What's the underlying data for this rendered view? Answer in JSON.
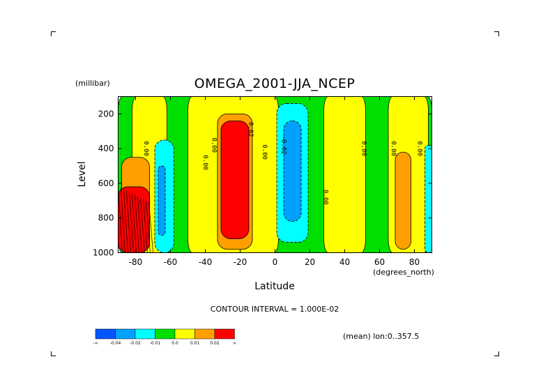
{
  "chart_data": {
    "type": "heatmap",
    "title": "OMEGA_2001-JJA_NCEP",
    "xlabel": "Latitude",
    "ylabel": "Level",
    "y_units": "(millibar)",
    "x_units": "(degrees_north)",
    "xlim": [
      -90,
      90
    ],
    "ylim": [
      1000,
      100
    ],
    "x_ticks": [
      "-80",
      "-60",
      "-40",
      "-20",
      "0",
      "20",
      "40",
      "60",
      "80"
    ],
    "x_tick_values": [
      -80,
      -60,
      -40,
      -20,
      0,
      20,
      40,
      60,
      80
    ],
    "y_ticks": [
      "200",
      "400",
      "600",
      "800",
      "1000"
    ],
    "y_tick_values": [
      200,
      400,
      600,
      800,
      1000
    ],
    "contour_interval_text": "CONTOUR INTERVAL = 1.000E-02",
    "mean_text": "(mean) lon:0..357.5",
    "contour_labels": [
      "0.00",
      "-0.02",
      "0.02"
    ],
    "colorbar": {
      "colors": [
        "#0055ff",
        "#00a0ff",
        "#00ffff",
        "#00e000",
        "#ffff00",
        "#ffa000",
        "#ff0000"
      ],
      "labels": [
        "-∞",
        "-0.04",
        "-0.02",
        "-0.01",
        "0.0",
        "0.01",
        "0.02",
        "∞"
      ]
    },
    "regions": [
      {
        "level": "green",
        "lat": [
          -90,
          90
        ],
        "p": [
          100,
          1000
        ]
      },
      {
        "level": "yellow",
        "lat": [
          -82,
          -62
        ],
        "p": [
          100,
          1000
        ]
      },
      {
        "level": "yellow",
        "lat": [
          -50,
          2
        ],
        "p": [
          100,
          1000
        ]
      },
      {
        "level": "yellow",
        "lat": [
          28,
          52
        ],
        "p": [
          100,
          1000
        ]
      },
      {
        "level": "yellow",
        "lat": [
          65,
          88
        ],
        "p": [
          100,
          1000
        ]
      },
      {
        "level": "orange",
        "lat": [
          -88,
          -72
        ],
        "p": [
          450,
          1000
        ]
      },
      {
        "level": "red",
        "lat": [
          -90,
          -72
        ],
        "p": [
          620,
          1000
        ]
      },
      {
        "level": "cyan",
        "lat": [
          -69,
          -58
        ],
        "p": [
          350,
          1000
        ]
      },
      {
        "level": "blue",
        "lat": [
          -67,
          -63
        ],
        "p": [
          500,
          900
        ]
      },
      {
        "level": "orange",
        "lat": [
          -33,
          -13
        ],
        "p": [
          200,
          980
        ]
      },
      {
        "level": "red",
        "lat": [
          -31,
          -15
        ],
        "p": [
          240,
          920
        ]
      },
      {
        "level": "cyan",
        "lat": [
          1,
          19
        ],
        "p": [
          140,
          940
        ]
      },
      {
        "level": "blue",
        "lat": [
          5,
          15
        ],
        "p": [
          240,
          820
        ]
      },
      {
        "level": "orange",
        "lat": [
          69,
          78
        ],
        "p": [
          420,
          980
        ]
      },
      {
        "level": "cyan",
        "lat": [
          86,
          90
        ],
        "p": [
          380,
          1000
        ]
      }
    ]
  }
}
